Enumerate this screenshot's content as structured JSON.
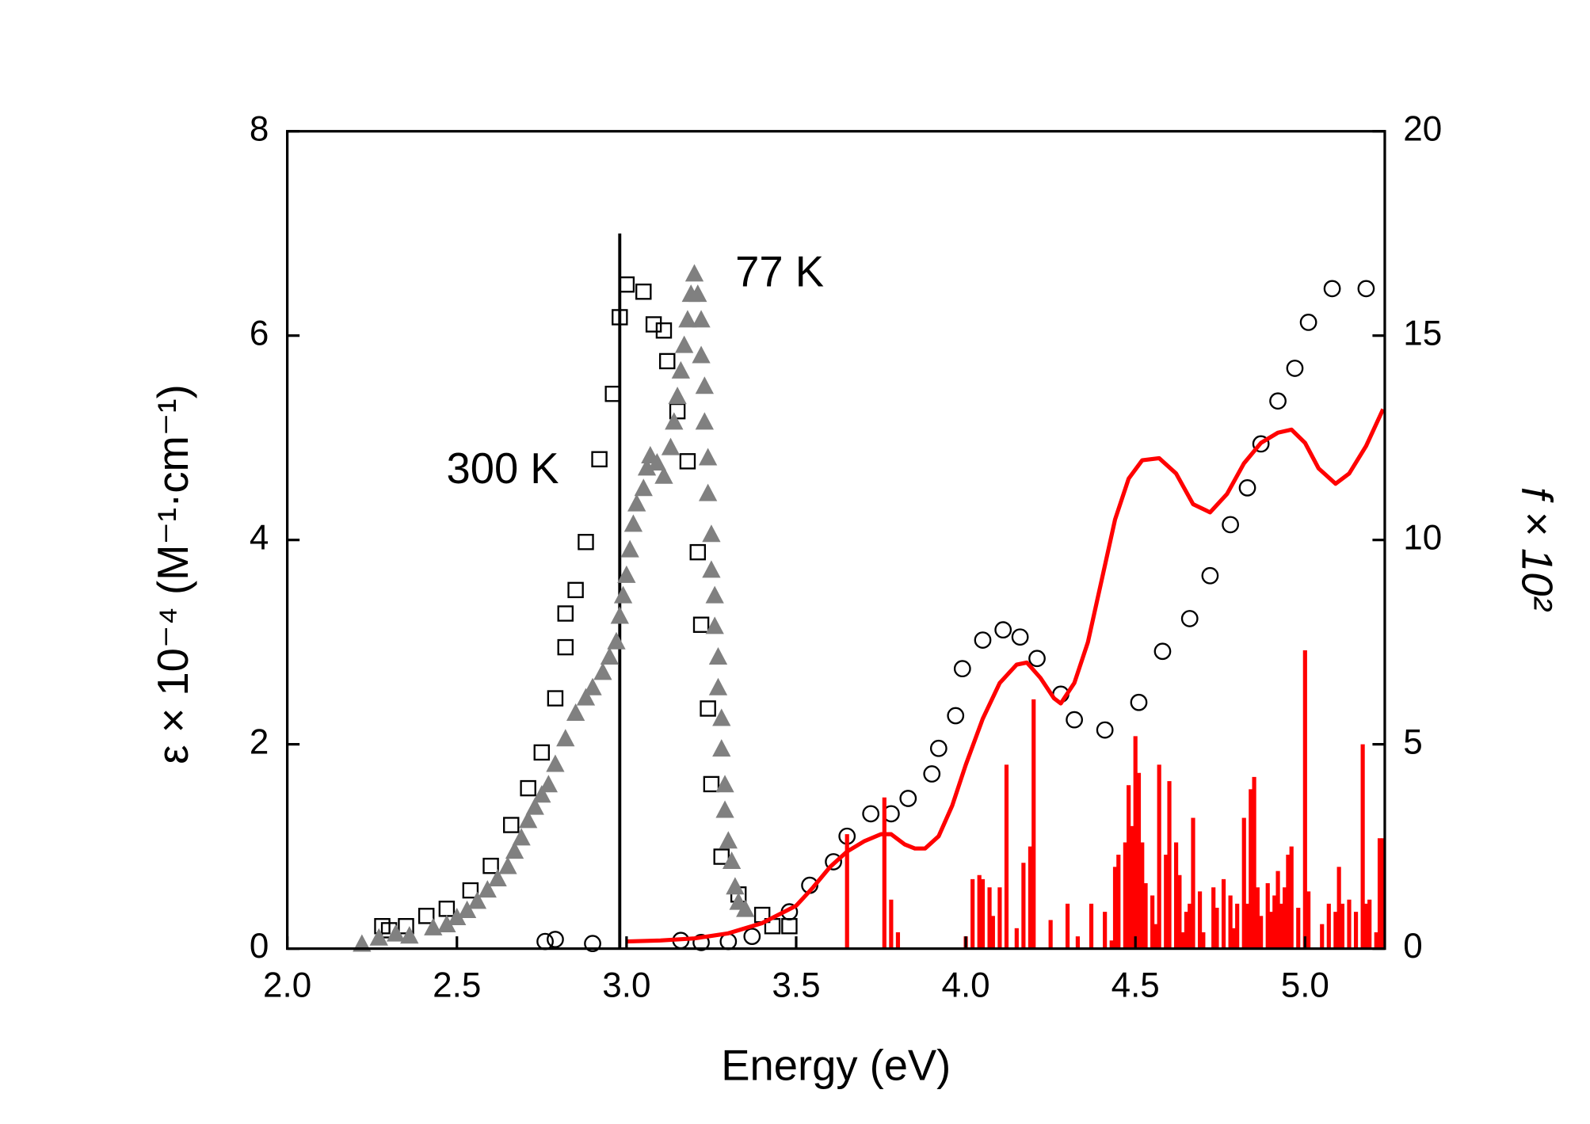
{
  "chart_data": {
    "type": "scatter",
    "xlabel": "Energy (eV)",
    "ylabel": "ε × 10⁻⁴ (M⁻¹·cm⁻¹)",
    "y2label": "f × 10²",
    "xlim": [
      2.0,
      5.235
    ],
    "ylim": [
      0,
      8
    ],
    "y2lim": [
      0,
      20
    ],
    "xticks": [
      {
        "value": 2.0,
        "label": "2.0"
      },
      {
        "value": 2.5,
        "label": "2.5"
      },
      {
        "value": 3.0,
        "label": "3.0"
      },
      {
        "value": 3.5,
        "label": "3.5"
      },
      {
        "value": 4.0,
        "label": "4.0"
      },
      {
        "value": 4.5,
        "label": "4.5"
      },
      {
        "value": 5.0,
        "label": "5.0"
      }
    ],
    "yticks": [
      0,
      2,
      4,
      6,
      8
    ],
    "y2ticks": [
      0,
      5,
      10,
      15,
      20
    ],
    "annotations": [
      {
        "text": "300 K",
        "color": "#000000"
      },
      {
        "text": "77 K",
        "color": "#808080"
      }
    ],
    "vline": {
      "x": 2.98,
      "ymax": 7,
      "color": "#000000"
    },
    "series": [
      {
        "marker": "square",
        "color": "#000000",
        "x": [
          2.28,
          2.3,
          2.35,
          2.41,
          2.47,
          2.54,
          2.6,
          2.66,
          2.71,
          2.75,
          2.79,
          2.82,
          2.82,
          2.85,
          2.88,
          2.92,
          2.96,
          2.98,
          3.0,
          3.05,
          3.08,
          3.11,
          3.12,
          3.15,
          3.18,
          3.21,
          3.22,
          3.24,
          3.25,
          3.28,
          3.33,
          3.4,
          3.43,
          3.48
        ],
        "values": [
          0.22,
          0.18,
          0.22,
          0.32,
          0.39,
          0.57,
          0.81,
          1.21,
          1.57,
          1.92,
          2.45,
          2.95,
          3.28,
          3.51,
          3.98,
          4.79,
          5.43,
          6.18,
          6.5,
          6.43,
          6.11,
          6.05,
          5.75,
          5.26,
          4.77,
          3.88,
          3.17,
          2.35,
          1.61,
          0.9,
          0.53,
          0.33,
          0.22,
          0.22
        ]
      },
      {
        "marker": "triangle",
        "color": "#808080",
        "x": [
          2.22,
          2.27,
          2.32,
          2.36,
          2.43,
          2.47,
          2.5,
          2.53,
          2.56,
          2.59,
          2.62,
          2.65,
          2.67,
          2.69,
          2.71,
          2.73,
          2.75,
          2.77,
          2.79,
          2.82,
          2.85,
          2.88,
          2.9,
          2.93,
          2.95,
          2.97,
          2.98,
          2.99,
          3.0,
          3.01,
          3.02,
          3.03,
          3.05,
          3.06,
          3.07,
          3.09,
          3.11,
          3.13,
          3.14,
          3.15,
          3.16,
          3.17,
          3.18,
          3.19,
          3.2,
          3.21,
          3.22,
          3.22,
          3.23,
          3.23,
          3.24,
          3.24,
          3.25,
          3.25,
          3.26,
          3.26,
          3.27,
          3.27,
          3.28,
          3.28,
          3.29,
          3.29,
          3.3,
          3.31,
          3.32,
          3.33,
          3.35
        ],
        "values": [
          0.04,
          0.1,
          0.14,
          0.12,
          0.2,
          0.23,
          0.3,
          0.37,
          0.46,
          0.57,
          0.68,
          0.8,
          0.95,
          1.08,
          1.25,
          1.38,
          1.5,
          1.6,
          1.8,
          2.05,
          2.3,
          2.45,
          2.55,
          2.7,
          2.85,
          3.0,
          3.25,
          3.45,
          3.65,
          3.9,
          4.15,
          4.35,
          4.5,
          4.7,
          4.82,
          4.75,
          4.62,
          4.9,
          5.15,
          5.4,
          5.65,
          5.9,
          6.15,
          6.4,
          6.6,
          6.4,
          6.15,
          5.8,
          5.5,
          5.15,
          4.8,
          4.45,
          4.05,
          3.7,
          3.45,
          3.15,
          2.85,
          2.55,
          2.25,
          1.95,
          1.6,
          1.35,
          1.05,
          0.85,
          0.6,
          0.45,
          0.38
        ]
      },
      {
        "marker": "circle",
        "color": "#000000",
        "x": [
          2.76,
          2.79,
          2.9,
          3.16,
          3.22,
          3.3,
          3.37,
          3.48,
          3.54,
          3.61,
          3.65,
          3.72,
          3.78,
          3.83,
          3.9,
          3.92,
          3.97,
          3.99,
          4.05,
          4.11,
          4.16,
          4.21,
          4.28,
          4.32,
          4.41,
          4.51,
          4.58,
          4.66,
          4.72,
          4.78,
          4.83,
          4.87,
          4.92,
          4.97,
          5.01,
          5.08,
          5.18
        ],
        "values": [
          0.07,
          0.09,
          0.05,
          0.08,
          0.06,
          0.07,
          0.12,
          0.36,
          0.62,
          0.85,
          1.1,
          1.32,
          1.32,
          1.47,
          1.71,
          1.96,
          2.28,
          2.74,
          3.02,
          3.12,
          3.05,
          2.84,
          2.49,
          2.24,
          2.14,
          2.41,
          2.91,
          3.23,
          3.65,
          4.15,
          4.51,
          4.94,
          5.36,
          5.68,
          6.13,
          6.46,
          6.46
        ]
      },
      {
        "marker": "line",
        "color": "#ff0000",
        "x": [
          3.0,
          3.1,
          3.2,
          3.3,
          3.4,
          3.5,
          3.55,
          3.6,
          3.65,
          3.7,
          3.75,
          3.78,
          3.82,
          3.85,
          3.88,
          3.92,
          3.96,
          4.0,
          4.05,
          4.1,
          4.15,
          4.18,
          4.22,
          4.26,
          4.28,
          4.32,
          4.36,
          4.4,
          4.44,
          4.48,
          4.52,
          4.57,
          4.62,
          4.67,
          4.72,
          4.77,
          4.82,
          4.87,
          4.92,
          4.96,
          5.0,
          5.04,
          5.09,
          5.13,
          5.18,
          5.23
        ],
        "values": [
          0.07,
          0.08,
          0.1,
          0.15,
          0.25,
          0.42,
          0.6,
          0.8,
          0.95,
          1.05,
          1.12,
          1.12,
          1.02,
          0.98,
          0.98,
          1.1,
          1.4,
          1.8,
          2.25,
          2.6,
          2.78,
          2.8,
          2.65,
          2.45,
          2.4,
          2.6,
          3.0,
          3.6,
          4.2,
          4.6,
          4.78,
          4.8,
          4.65,
          4.35,
          4.27,
          4.45,
          4.75,
          4.95,
          5.05,
          5.08,
          4.95,
          4.7,
          4.55,
          4.65,
          4.92,
          5.28
        ]
      },
      {
        "marker": "stick",
        "color": "#ff0000",
        "axis": "y2",
        "x": [
          3.65,
          3.76,
          3.78,
          3.8,
          4.0,
          4.02,
          4.04,
          4.05,
          4.07,
          4.08,
          4.1,
          4.12,
          4.15,
          4.17,
          4.19,
          4.2,
          4.25,
          4.3,
          4.33,
          4.37,
          4.41,
          4.43,
          4.44,
          4.45,
          4.47,
          4.48,
          4.49,
          4.5,
          4.51,
          4.52,
          4.53,
          4.55,
          4.56,
          4.57,
          4.59,
          4.6,
          4.62,
          4.63,
          4.64,
          4.65,
          4.66,
          4.67,
          4.69,
          4.7,
          4.73,
          4.74,
          4.76,
          4.78,
          4.79,
          4.8,
          4.82,
          4.83,
          4.84,
          4.85,
          4.86,
          4.87,
          4.89,
          4.9,
          4.91,
          4.92,
          4.93,
          4.94,
          4.95,
          4.96,
          4.98,
          5.0,
          5.01,
          5.05,
          5.07,
          5.09,
          5.1,
          5.11,
          5.13,
          5.15,
          5.17,
          5.18,
          5.19,
          5.21,
          5.22,
          5.23
        ],
        "values": [
          2.8,
          3.7,
          1.2,
          0.4,
          0.3,
          1.7,
          1.8,
          1.7,
          1.5,
          0.8,
          1.5,
          4.5,
          0.5,
          2.1,
          2.5,
          6.1,
          0.7,
          1.1,
          0.3,
          1.1,
          0.9,
          0.2,
          2.0,
          2.3,
          2.6,
          4.0,
          3.0,
          5.2,
          4.3,
          2.6,
          1.6,
          1.3,
          0.6,
          4.5,
          2.3,
          4.1,
          2.6,
          1.8,
          0.4,
          0.9,
          1.1,
          3.2,
          1.4,
          0.4,
          1.5,
          1.0,
          1.7,
          1.3,
          0.5,
          1.1,
          3.2,
          1.1,
          3.9,
          4.2,
          1.5,
          0.8,
          1.6,
          0.9,
          1.3,
          1.9,
          1.1,
          1.5,
          2.3,
          2.5,
          1.0,
          7.3,
          1.4,
          0.6,
          1.1,
          0.9,
          2.0,
          1.1,
          1.2,
          0.9,
          5.0,
          1.1,
          1.2,
          0.4,
          2.7,
          2.7
        ]
      }
    ]
  }
}
